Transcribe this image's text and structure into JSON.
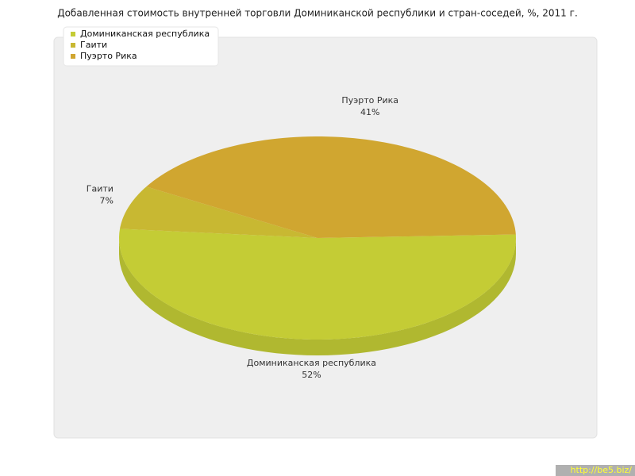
{
  "chart_data": {
    "type": "pie3d",
    "title": "Добавленная стоимость внутренней торговли Доминиканской республики и стран-соседей, %, 2011 г.",
    "categories": [
      "Доминиканская республика",
      "Гаити",
      "Пуэрто Рика"
    ],
    "values": [
      52,
      7,
      41
    ],
    "value_labels": [
      "52%",
      "7%",
      "41%"
    ],
    "colors": [
      "#c4cc35",
      "#c8b832",
      "#d0a630"
    ],
    "legend": "top-left"
  },
  "watermark": "http://be5.biz/"
}
